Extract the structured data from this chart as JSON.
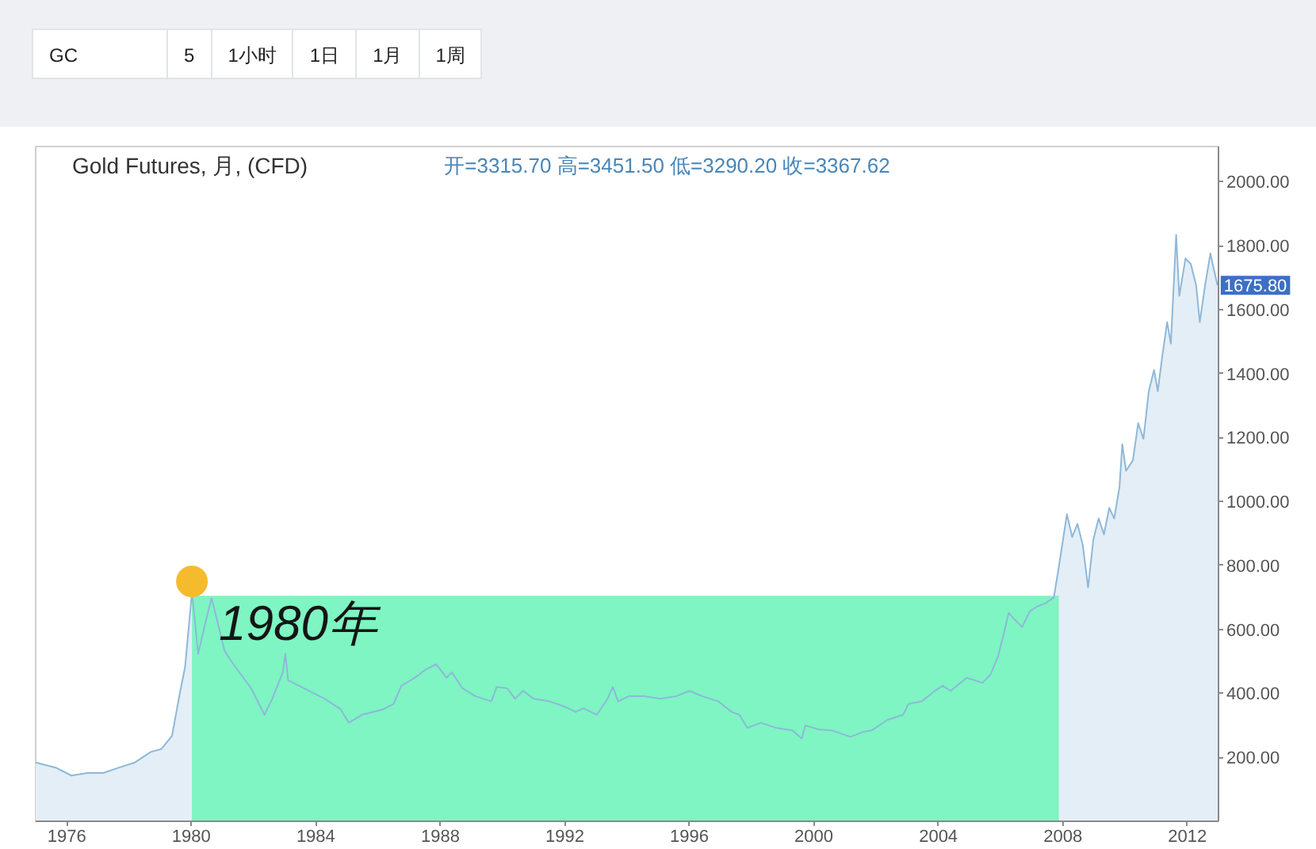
{
  "chart_data": {
    "type": "area",
    "title": "Gold Futures, 月, (CFD)",
    "subtitle": "开=3315.70 高=3451.50 低=3290.20 收=3367.62",
    "xlim": [
      1975,
      2013
    ],
    "xticks": [
      1976,
      1980,
      1984,
      1988,
      1992,
      1996,
      2000,
      2004,
      2008,
      2012
    ],
    "ylim": [
      0,
      2110
    ],
    "yticks": [
      {
        "value": 200,
        "label": "200.00"
      },
      {
        "value": 400,
        "label": "400.00"
      },
      {
        "value": 600,
        "label": "600.00"
      },
      {
        "value": 800,
        "label": "800.00"
      },
      {
        "value": 1000,
        "label": "1000.00"
      },
      {
        "value": 1200,
        "label": "1200.00"
      },
      {
        "value": 1400,
        "label": "1400.00"
      },
      {
        "value": 1600,
        "label": "1600.00"
      },
      {
        "value": 1800,
        "label": "1800.00"
      },
      {
        "value": 2000,
        "label": "2000.00"
      }
    ],
    "series": [
      {
        "color": "#e4eef6",
        "line_style": "solid",
        "x": [
          1975.0,
          1975.64,
          1976.15,
          1976.66,
          1977.17,
          1977.68,
          1978.19,
          1978.7,
          1979.04,
          1979.38,
          1979.63,
          1979.8,
          1980.02,
          1980.22,
          1980.48,
          1980.65,
          1980.82,
          1981.07,
          1981.41,
          1981.92,
          1982.35,
          1982.6,
          1982.94,
          1983.02,
          1983.11,
          1983.62,
          1984.29,
          1984.8,
          1985.06,
          1985.48,
          1986.16,
          1986.5,
          1986.75,
          1987.18,
          1987.52,
          1987.86,
          1988.2,
          1988.37,
          1988.71,
          1989.13,
          1989.64,
          1989.81,
          1990.15,
          1990.4,
          1990.66,
          1991.0,
          1991.51,
          1992.01,
          1992.35,
          1992.6,
          1993.03,
          1993.37,
          1993.54,
          1993.71,
          1994.05,
          1994.56,
          1995.07,
          1995.58,
          1996.0,
          1996.42,
          1996.93,
          1997.36,
          1997.61,
          1997.86,
          1998.29,
          1998.8,
          1999.31,
          1999.61,
          1999.73,
          2000.16,
          2000.58,
          2001.18,
          2001.6,
          2001.85,
          2002.36,
          2002.87,
          2003.04,
          2003.47,
          2003.89,
          2004.14,
          2004.4,
          2004.91,
          2005.42,
          2005.67,
          2005.92,
          2006.09,
          2006.26,
          2006.44,
          2006.69,
          2006.94,
          2007.2,
          2007.45,
          2007.71,
          2007.87,
          2008.13,
          2008.3,
          2008.47,
          2008.64,
          2008.81,
          2008.98,
          2009.15,
          2009.32,
          2009.49,
          2009.65,
          2009.82,
          2009.91,
          2010.03,
          2010.25,
          2010.42,
          2010.59,
          2010.76,
          2010.93,
          2011.05,
          2011.18,
          2011.35,
          2011.47,
          2011.64,
          2011.74,
          2011.94,
          2012.11,
          2012.28,
          2012.4,
          2012.57,
          2012.74,
          2012.83,
          2012.97
        ],
        "values": [
          184,
          168,
          143,
          151,
          151,
          168,
          184,
          217,
          226,
          267,
          400,
          483,
          715,
          524,
          632,
          698,
          632,
          532,
          483,
          416,
          333,
          383,
          466,
          524,
          441,
          416,
          383,
          350,
          308,
          333,
          350,
          367,
          424,
          449,
          474,
          491,
          449,
          466,
          416,
          391,
          375,
          420,
          416,
          383,
          408,
          383,
          375,
          358,
          342,
          353,
          333,
          383,
          420,
          375,
          391,
          391,
          383,
          391,
          408,
          391,
          375,
          342,
          333,
          292,
          308,
          292,
          284,
          259,
          300,
          287,
          284,
          264,
          280,
          284,
          317,
          333,
          367,
          375,
          408,
          424,
          408,
          449,
          433,
          458,
          516,
          582,
          652,
          632,
          607,
          657,
          673,
          682,
          700,
          795,
          960,
          889,
          930,
          864,
          731,
          881,
          947,
          897,
          980,
          947,
          1046,
          1179,
          1096,
          1129,
          1245,
          1196,
          1345,
          1411,
          1345,
          1444,
          1561,
          1494,
          1834,
          1643,
          1760,
          1743,
          1677,
          1561,
          1677,
          1776,
          1735,
          1675.8
        ]
      },
      {
        "type": "area",
        "color": "#7ef5c3",
        "x": [
          1980.02,
          2007.87
        ],
        "values": [
          705,
          705
        ]
      },
      {
        "type": "scatter",
        "marker": "circle",
        "color": "#f6bb2c",
        "x": [
          1980.02
        ],
        "values": [
          750
        ]
      }
    ],
    "annotations": [
      "GC",
      "5",
      "1小时",
      "1日",
      "1月",
      "1周",
      {
        "text": "1980年",
        "x": 1980.02,
        "y": 705
      },
      {
        "text": "1675.80",
        "x": 2012.97,
        "y": 1675.8
      }
    ]
  }
}
